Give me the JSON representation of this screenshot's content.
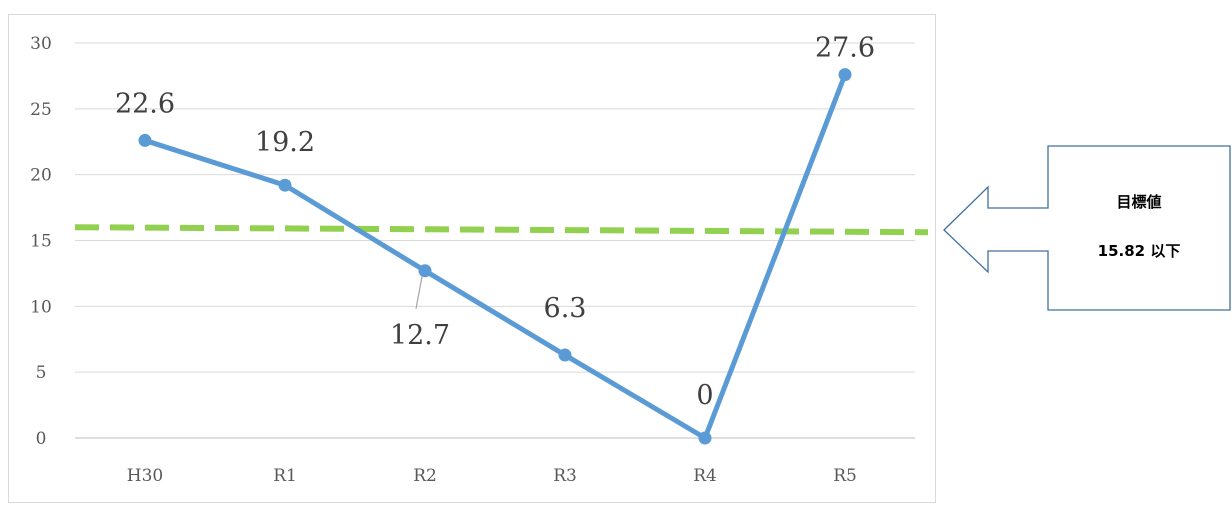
{
  "chart_data": {
    "type": "line",
    "categories": [
      "H30",
      "R1",
      "R2",
      "R3",
      "R4",
      "R5"
    ],
    "series": [
      {
        "values": [
          22.6,
          19.2,
          12.7,
          6.3,
          0,
          27.6
        ],
        "color": "#5b9bd5"
      }
    ],
    "data_labels": [
      "22.6",
      "19.2",
      "12.7",
      "6.3",
      "0",
      "27.6"
    ],
    "ylim": [
      0,
      30
    ],
    "yticks": [
      0,
      5,
      10,
      15,
      20,
      25,
      30
    ],
    "grid": true,
    "target": {
      "value": 15.82,
      "color": "#92d050",
      "style": "dashed"
    }
  },
  "callout": {
    "line1": "目標値",
    "line2": "15.82 以下"
  }
}
